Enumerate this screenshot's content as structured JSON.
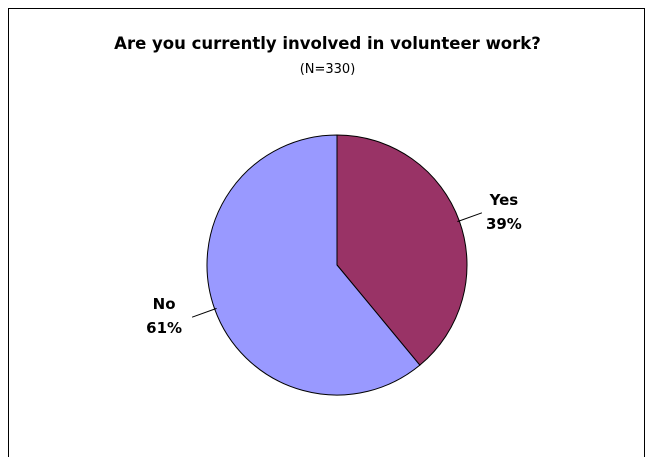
{
  "chart_data": {
    "type": "pie",
    "title": "Are you currently involved in volunteer work?",
    "subtitle": "(N=330)",
    "slices": [
      {
        "label": "Yes",
        "value": 39,
        "value_text": "39%",
        "color": "#993366"
      },
      {
        "label": "No",
        "value": 61,
        "value_text": "61%",
        "color": "#9999FF"
      }
    ],
    "start_angle_deg": 0,
    "direction": "clockwise",
    "legend": "none",
    "border_color": "#000000"
  }
}
